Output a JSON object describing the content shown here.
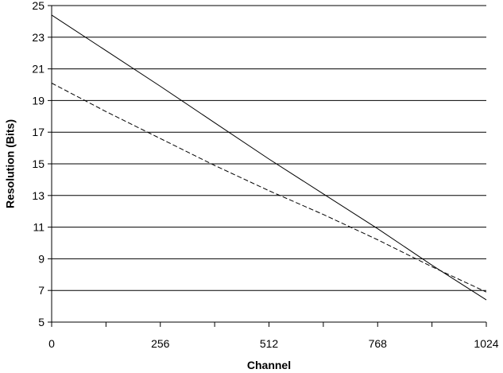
{
  "chart_data": {
    "type": "line",
    "title": "",
    "xlabel": "Channel",
    "ylabel": "Resolution (Bits)",
    "xlim": [
      0,
      1024
    ],
    "ylim": [
      5,
      25
    ],
    "x_ticks": [
      0,
      256,
      512,
      768,
      1024
    ],
    "x_minor_ticks": [
      128,
      384,
      640,
      896
    ],
    "y_ticks": [
      5,
      7,
      9,
      11,
      13,
      15,
      17,
      19,
      21,
      23,
      25
    ],
    "grid": "horizontal",
    "legend": "none",
    "series": [
      {
        "style": "solid",
        "color": "#000000",
        "x": [
          0,
          128,
          256,
          384,
          512,
          640,
          768,
          896,
          1024
        ],
        "y": [
          24.4,
          22.15,
          19.9,
          17.6,
          15.3,
          13.1,
          10.9,
          8.6,
          6.4
        ]
      },
      {
        "style": "dashed",
        "color": "#000000",
        "x": [
          0,
          128,
          256,
          384,
          512,
          640,
          768,
          896,
          1024
        ],
        "y": [
          20.1,
          18.3,
          16.6,
          14.9,
          13.3,
          11.8,
          10.2,
          8.5,
          6.9
        ]
      }
    ]
  }
}
